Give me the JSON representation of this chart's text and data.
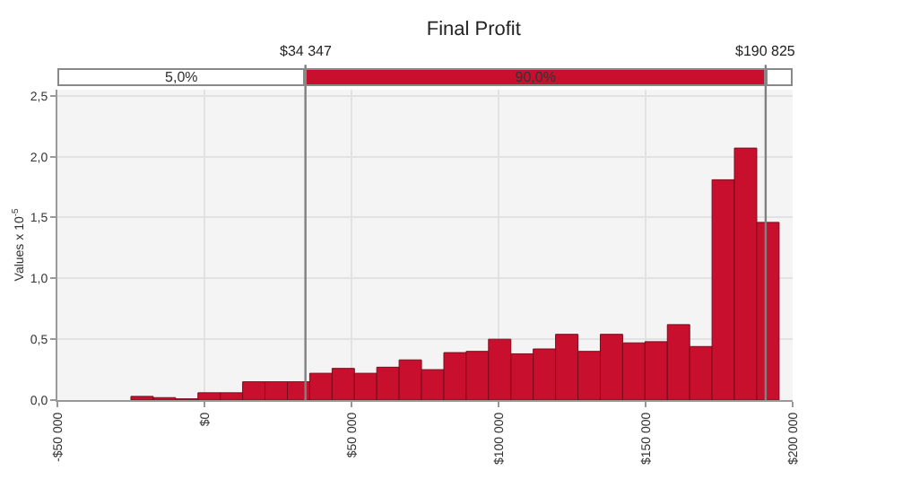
{
  "chart_data": {
    "type": "histogram",
    "title": "Final Profit",
    "ylabel": "Values x 10$^{-5}$",
    "bins": [
      -25000,
      -17400,
      -9800,
      -2200,
      5400,
      13000,
      20600,
      28200,
      35800,
      43400,
      51000,
      58600,
      66200,
      73800,
      81400,
      89000,
      96600,
      104200,
      111800,
      119400,
      127000,
      134600,
      142200,
      149800,
      157400,
      165000,
      172600,
      180200,
      187800,
      195400
    ],
    "values": [
      0.03,
      0.02,
      0.01,
      0.06,
      0.06,
      0.15,
      0.15,
      0.15,
      0.22,
      0.26,
      0.22,
      0.27,
      0.33,
      0.25,
      0.39,
      0.4,
      0.5,
      0.38,
      0.42,
      0.54,
      0.4,
      0.54,
      0.47,
      0.48,
      0.62,
      0.44,
      1.81,
      2.07,
      1.46
    ],
    "color": "#c8102e",
    "xlim": [
      -50000,
      200000
    ],
    "xticks": [
      {
        "value": -50000,
        "label": "-$50 000"
      },
      {
        "value": 0,
        "label": "$0"
      },
      {
        "value": 50000,
        "label": "$50 000"
      },
      {
        "value": 100000,
        "label": "$100 000"
      },
      {
        "value": 150000,
        "label": "$150 000"
      },
      {
        "value": 200000,
        "label": "$200 000"
      }
    ],
    "ylim": [
      0,
      2.55
    ],
    "yticks": [
      {
        "value": 0,
        "label": "0,0"
      },
      {
        "value": 0.5,
        "label": "0,5"
      },
      {
        "value": 1,
        "label": "1,0"
      },
      {
        "value": 1.5,
        "label": "1,5"
      },
      {
        "value": 2,
        "label": "2,0"
      },
      {
        "value": 2.5,
        "label": "2,5"
      }
    ],
    "grid": true,
    "ref_lines": [
      {
        "axis": "x",
        "value": 34347,
        "label": "$34 347",
        "color": "#808080"
      },
      {
        "axis": "x",
        "value": 190825,
        "label": "$190 825",
        "color": "#808080"
      }
    ],
    "annotations": [
      "5,0%",
      "90,0%"
    ]
  }
}
